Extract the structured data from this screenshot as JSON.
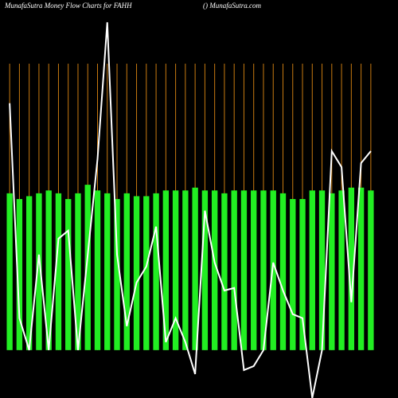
{
  "chart_data": {
    "type": "bar-line",
    "title": "MunafaSutra  Money Flow  Charts for FAHH",
    "subtitle": "() MunafaSutra.com",
    "categories": [
      null,
      null,
      null,
      null,
      null,
      null,
      null,
      null,
      null,
      null,
      null,
      null,
      null,
      null,
      null,
      null,
      null,
      null,
      null,
      null,
      null,
      null,
      null,
      null,
      null,
      null,
      null,
      null,
      null,
      null,
      null,
      null,
      null,
      null,
      null,
      null,
      null,
      null
    ],
    "series": [
      {
        "kind": "bar",
        "color": "#22ee22",
        "values": [
          55,
          53,
          54,
          55,
          56,
          55,
          53,
          55,
          58,
          56,
          55,
          53,
          55,
          54,
          54,
          55,
          56,
          56,
          56,
          57,
          56,
          56,
          55,
          56,
          56,
          56,
          56,
          56,
          55,
          53,
          53,
          56,
          56,
          55,
          56,
          57,
          57,
          56
        ]
      },
      {
        "kind": "line",
        "color": "#ffffff",
        "values": [
          86.6,
          11.2,
          0,
          33.5,
          0,
          39.1,
          41.9,
          0,
          33.5,
          67,
          115,
          33.5,
          8.4,
          23.7,
          29.3,
          43.3,
          2.8,
          11.2,
          2.8,
          -8.4,
          48.9,
          30.7,
          20.9,
          21.8,
          -7,
          -5.6,
          0,
          30.7,
          20.9,
          12.6,
          11.2,
          -16.8,
          0,
          69.8,
          64.2,
          16.8,
          65.6,
          69.8
        ]
      }
    ],
    "ylim": [
      -16.8,
      115
    ],
    "grid_color": "#c87a10"
  }
}
